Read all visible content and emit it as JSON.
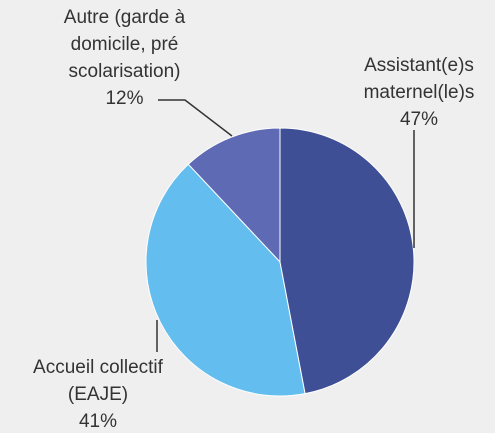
{
  "chart_data": {
    "type": "pie",
    "categories": [
      "Assistant(e)s maternel(le)s",
      "Accueil collectif (EAJE)",
      "Autre (garde à domicile, pré scolarisation)"
    ],
    "values": [
      47,
      41,
      12
    ],
    "value_labels": [
      "47%",
      "41%",
      "12%"
    ],
    "colors": [
      "#3f4f96",
      "#63bdee",
      "#5f6ab4"
    ]
  }
}
